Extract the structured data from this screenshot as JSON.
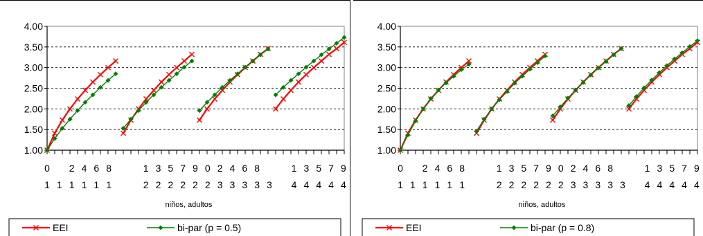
{
  "chart_data": [
    {
      "type": "line",
      "ylim": [
        1.0,
        4.0
      ],
      "yticks": [
        "1.00",
        "1.50",
        "2.00",
        "2.50",
        "3.00",
        "3.50",
        "4.00"
      ],
      "xlabel": "niños, adultos",
      "x_tick_rows": {
        "row1": [
          "0",
          "",
          "2",
          "4",
          "6",
          "8",
          "",
          "",
          "1",
          "3",
          "5",
          "7",
          "9",
          "0",
          "2",
          "4",
          "6",
          "8",
          "",
          "",
          "1",
          "3",
          "5",
          "7",
          "9"
        ],
        "row2": [
          "1",
          "1",
          "1",
          "1",
          "1",
          "1",
          "",
          "",
          "2",
          "2",
          "2",
          "2",
          "2",
          "2",
          "3",
          "3",
          "3",
          "3",
          "3",
          "",
          "4",
          "4",
          "4",
          "4",
          "4"
        ]
      },
      "grid": "horizontal dashed",
      "legend_position": "bottom",
      "series": [
        {
          "name": "EEI",
          "color": "#ff0000",
          "marker": "x",
          "segments": [
            {
              "x": [
                1,
                2,
                3,
                4,
                5,
                6,
                7,
                8,
                9,
                10
              ],
              "y": [
                1.0,
                1.41,
                1.73,
                2.0,
                2.24,
                2.45,
                2.65,
                2.83,
                3.0,
                3.16
              ]
            },
            {
              "x": [
                11,
                12,
                13,
                14,
                15,
                16,
                17,
                18,
                19,
                20
              ],
              "y": [
                1.41,
                1.73,
                2.0,
                2.24,
                2.45,
                2.65,
                2.83,
                3.0,
                3.16,
                3.32
              ]
            },
            {
              "x": [
                21,
                22,
                23,
                24,
                25,
                26,
                27,
                28,
                29,
                30
              ],
              "y": [
                1.73,
                2.0,
                2.24,
                2.45,
                2.65,
                2.83,
                3.0,
                3.16,
                3.32,
                3.46
              ]
            },
            {
              "x": [
                31,
                32,
                33,
                34,
                35,
                36,
                37,
                38,
                39,
                40
              ],
              "y": [
                2.0,
                2.24,
                2.45,
                2.65,
                2.83,
                3.0,
                3.16,
                3.32,
                3.46,
                3.61
              ]
            }
          ]
        },
        {
          "name": "bi-par (p = 0.5)",
          "color": "#008000",
          "marker": "diamond",
          "segments": [
            {
              "x": [
                1,
                2,
                3,
                4,
                5,
                6,
                7,
                8,
                9,
                10
              ],
              "y": [
                1.0,
                1.28,
                1.53,
                1.75,
                1.96,
                2.16,
                2.34,
                2.52,
                2.69,
                2.85
              ]
            },
            {
              "x": [
                11,
                12,
                13,
                14,
                15,
                16,
                17,
                18,
                19,
                20
              ],
              "y": [
                1.53,
                1.75,
                1.96,
                2.16,
                2.34,
                2.52,
                2.69,
                2.85,
                3.01,
                3.16
              ]
            },
            {
              "x": [
                21,
                22,
                23,
                24,
                25,
                26,
                27,
                28,
                29,
                30
              ],
              "y": [
                1.96,
                2.16,
                2.34,
                2.52,
                2.69,
                2.85,
                3.01,
                3.16,
                3.31,
                3.45
              ]
            },
            {
              "x": [
                31,
                32,
                33,
                34,
                35,
                36,
                37,
                38,
                39,
                40
              ],
              "y": [
                2.34,
                2.52,
                2.69,
                2.85,
                3.01,
                3.16,
                3.31,
                3.45,
                3.59,
                3.73
              ]
            }
          ]
        }
      ]
    },
    {
      "type": "line",
      "ylim": [
        1.0,
        4.0
      ],
      "yticks": [
        "1.00",
        "1.50",
        "2.00",
        "2.50",
        "3.00",
        "3.50",
        "4.00"
      ],
      "xlabel": "niños, adultos",
      "x_tick_rows": {
        "row1": [
          "0",
          "",
          "2",
          "4",
          "6",
          "8",
          "",
          "",
          "1",
          "3",
          "5",
          "7",
          "9",
          "0",
          "2",
          "4",
          "6",
          "8",
          "",
          "",
          "1",
          "3",
          "5",
          "7",
          "9"
        ],
        "row2": [
          "1",
          "1",
          "1",
          "1",
          "1",
          "1",
          "",
          "",
          "2",
          "2",
          "2",
          "2",
          "2",
          "2",
          "3",
          "3",
          "3",
          "3",
          "3",
          "",
          "4",
          "4",
          "4",
          "4",
          "4"
        ]
      },
      "grid": "horizontal dashed",
      "legend_position": "bottom",
      "series": [
        {
          "name": "EEI",
          "color": "#ff0000",
          "marker": "x",
          "segments": [
            {
              "x": [
                1,
                2,
                3,
                4,
                5,
                6,
                7,
                8,
                9,
                10
              ],
              "y": [
                1.0,
                1.41,
                1.73,
                2.0,
                2.24,
                2.45,
                2.65,
                2.83,
                3.0,
                3.16
              ]
            },
            {
              "x": [
                11,
                12,
                13,
                14,
                15,
                16,
                17,
                18,
                19,
                20
              ],
              "y": [
                1.41,
                1.73,
                2.0,
                2.24,
                2.45,
                2.65,
                2.83,
                3.0,
                3.16,
                3.32
              ]
            },
            {
              "x": [
                21,
                22,
                23,
                24,
                25,
                26,
                27,
                28,
                29,
                30
              ],
              "y": [
                1.73,
                2.0,
                2.24,
                2.45,
                2.65,
                2.83,
                3.0,
                3.16,
                3.32,
                3.46
              ]
            },
            {
              "x": [
                31,
                32,
                33,
                34,
                35,
                36,
                37,
                38,
                39,
                40
              ],
              "y": [
                2.0,
                2.24,
                2.45,
                2.65,
                2.83,
                3.0,
                3.16,
                3.32,
                3.46,
                3.61
              ]
            }
          ]
        },
        {
          "name": "bi-par (p = 0.8)",
          "color": "#008000",
          "marker": "diamond",
          "segments": [
            {
              "x": [
                1,
                2,
                3,
                4,
                5,
                6,
                7,
                8,
                9,
                10
              ],
              "y": [
                1.0,
                1.37,
                1.71,
                2.0,
                2.25,
                2.46,
                2.63,
                2.79,
                2.95,
                3.08
              ]
            },
            {
              "x": [
                11,
                12,
                13,
                14,
                15,
                16,
                17,
                18,
                19,
                20
              ],
              "y": [
                1.46,
                1.75,
                2.0,
                2.22,
                2.42,
                2.62,
                2.79,
                2.96,
                3.12,
                3.28
              ]
            },
            {
              "x": [
                21,
                22,
                23,
                24,
                25,
                26,
                27,
                28,
                29,
                30
              ],
              "y": [
                1.83,
                2.05,
                2.26,
                2.46,
                2.64,
                2.82,
                2.99,
                3.15,
                3.31,
                3.46
              ]
            },
            {
              "x": [
                31,
                32,
                33,
                34,
                35,
                36,
                37,
                38,
                39,
                40
              ],
              "y": [
                2.08,
                2.3,
                2.51,
                2.7,
                2.88,
                3.05,
                3.21,
                3.36,
                3.51,
                3.65
              ]
            }
          ]
        }
      ]
    }
  ]
}
